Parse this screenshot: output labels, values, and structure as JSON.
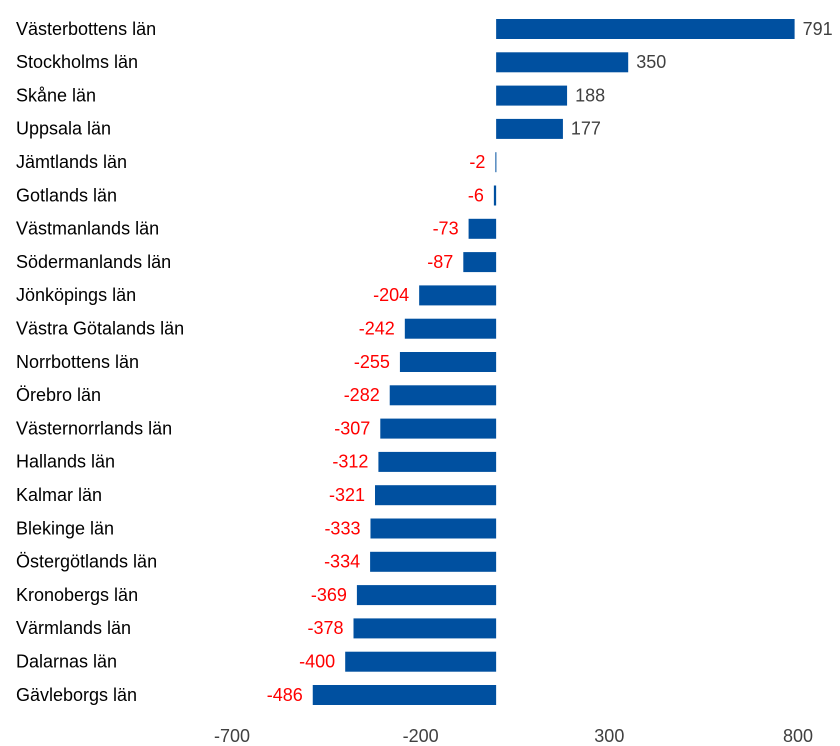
{
  "chart_data": {
    "type": "bar",
    "orientation": "horizontal",
    "categories": [
      "Västerbottens län",
      "Stockholms län",
      "Skåne län",
      "Uppsala län",
      "Jämtlands län",
      "Gotlands län",
      "Västmanlands län",
      "Södermanlands län",
      "Jönköpings län",
      "Västra Götalands län",
      "Norrbottens län",
      "Örebro län",
      "Västernorrlands län",
      "Hallands län",
      "Kalmar län",
      "Blekinge län",
      "Östergötlands län",
      "Kronobergs län",
      "Värmlands län",
      "Dalarnas län",
      "Gävleborgs län"
    ],
    "values": [
      791,
      350,
      188,
      177,
      -2,
      -6,
      -73,
      -87,
      -204,
      -242,
      -255,
      -282,
      -307,
      -312,
      -321,
      -333,
      -334,
      -369,
      -378,
      -400,
      -486
    ],
    "color": "#0050a0",
    "label_color": "#404040",
    "negative_label_color": "#ff0000",
    "xlim": [
      -700,
      800
    ],
    "xticks": [
      -700,
      -200,
      300,
      800
    ],
    "grid": false
  }
}
